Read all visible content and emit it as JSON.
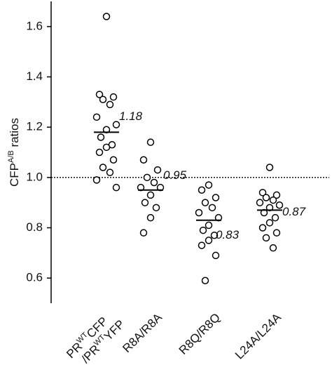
{
  "chart_data": {
    "type": "strip",
    "ylabel": [
      "CFP",
      "A/B",
      " ratios"
    ],
    "categories": [
      [
        [
          "PR",
          "WT",
          "CFP"
        ],
        [
          "/PR",
          "WT",
          "YFP"
        ]
      ],
      "R8A/R8A",
      "R8Q/R8Q",
      "L24A/L24A"
    ],
    "series": [
      {
        "values": [
          1.64,
          1.33,
          1.32,
          1.31,
          1.29,
          1.24,
          1.21,
          1.19,
          1.16,
          1.13,
          1.12,
          1.1,
          1.07,
          1.04,
          1.02,
          0.99,
          0.96
        ]
      },
      {
        "values": [
          1.14,
          1.07,
          1.03,
          1.0,
          0.98,
          0.96,
          0.96,
          0.93,
          0.9,
          0.88,
          0.84,
          0.78
        ]
      },
      {
        "values": [
          0.97,
          0.95,
          0.92,
          0.9,
          0.88,
          0.86,
          0.84,
          0.81,
          0.79,
          0.77,
          0.75,
          0.73,
          0.69,
          0.59
        ]
      },
      {
        "values": [
          1.04,
          0.94,
          0.93,
          0.92,
          0.91,
          0.9,
          0.89,
          0.88,
          0.86,
          0.84,
          0.82,
          0.8,
          0.78,
          0.76,
          0.72
        ]
      }
    ],
    "means": [
      1.18,
      0.95,
      0.83,
      0.87
    ],
    "reference_line": 1,
    "ylim": [
      0.5,
      1.7
    ],
    "yticks": [
      0.6,
      0.8,
      {
        "value": 1,
        "label": "1.0"
      },
      1.2,
      1.4,
      1.6
    ]
  }
}
